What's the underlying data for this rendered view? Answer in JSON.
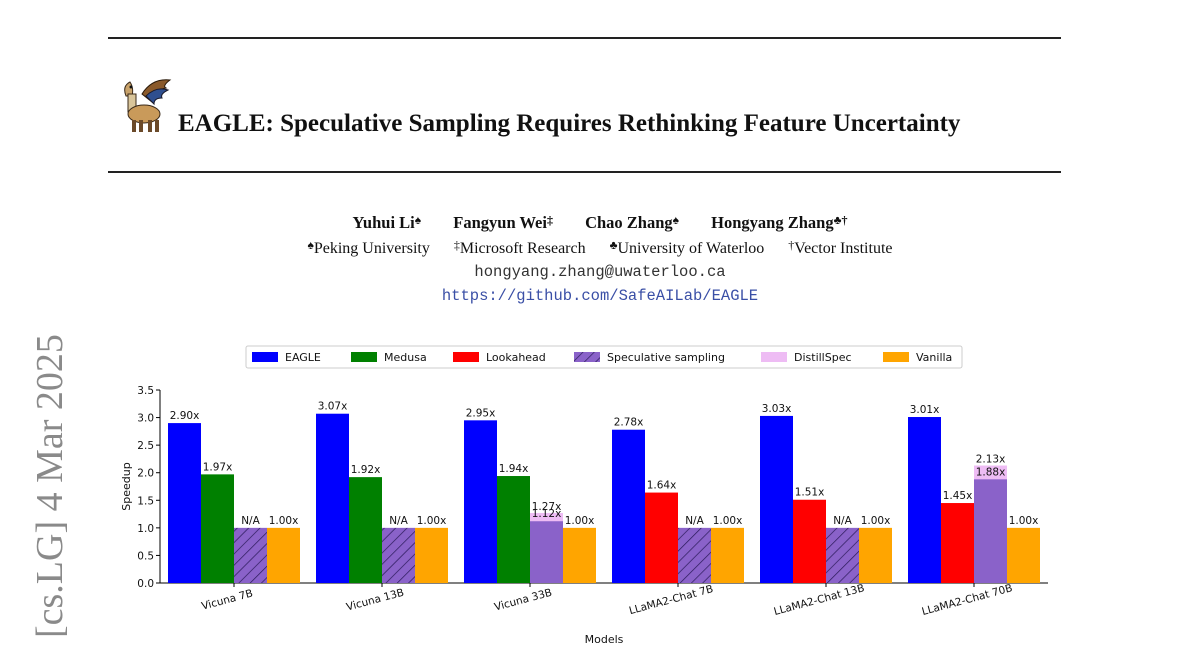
{
  "paper": {
    "title": "EAGLE: Speculative Sampling Requires Rethinking Feature Uncertainty",
    "authors": [
      {
        "name": "Yuhui Li",
        "mark": "♠"
      },
      {
        "name": "Fangyun Wei",
        "mark": "‡"
      },
      {
        "name": "Chao Zhang",
        "mark": "♠"
      },
      {
        "name": "Hongyang Zhang",
        "mark": "♣†"
      }
    ],
    "affiliations": [
      {
        "mark": "♠",
        "name": "Peking University"
      },
      {
        "mark": "‡",
        "name": "Microsoft Research"
      },
      {
        "mark": "♣",
        "name": "University of Waterloo"
      },
      {
        "mark": "†",
        "name": "Vector Institute"
      }
    ],
    "email": "hongyang.zhang@uwaterloo.ca",
    "url": "https://github.com/SafeAILab/EAGLE",
    "arxiv_stamp": "[cs.LG]  4 Mar 2025"
  },
  "chart_data": {
    "type": "bar",
    "xlabel": "Models",
    "ylabel": "Speedup",
    "ylim": [
      0,
      3.5
    ],
    "yticks": [
      "0.0",
      "0.5",
      "1.0",
      "1.5",
      "2.0",
      "2.5",
      "3.0",
      "3.5"
    ],
    "legend_position": "top-center",
    "categories": [
      "Vicuna 7B",
      "Vicuna 13B",
      "Vicuna 33B",
      "LLaMA2-Chat 7B",
      "LLaMA2-Chat 13B",
      "LLaMA2-Chat 70B"
    ],
    "series": [
      {
        "name": "EAGLE",
        "color": "#0000ff",
        "values": [
          2.9,
          3.07,
          2.95,
          2.78,
          3.03,
          3.01
        ],
        "labels": [
          "2.90x",
          "3.07x",
          "2.95x",
          "2.78x",
          "3.03x",
          "3.01x"
        ]
      },
      {
        "name": "Medusa",
        "color": "#008000",
        "values": [
          1.97,
          1.92,
          1.94,
          null,
          null,
          null
        ],
        "labels": [
          "1.97x",
          "1.92x",
          "1.94x",
          null,
          null,
          null
        ]
      },
      {
        "name": "Lookahead",
        "color": "#ff0000",
        "values": [
          null,
          null,
          null,
          1.64,
          1.51,
          1.45
        ],
        "labels": [
          null,
          null,
          null,
          "1.64x",
          "1.51x",
          "1.45x"
        ]
      },
      {
        "name": "Speculative sampling",
        "color": "#8a62c9",
        "values": [
          1.0,
          1.0,
          1.12,
          1.0,
          1.0,
          1.88
        ],
        "labels": [
          "N/A",
          "N/A",
          "1.12x",
          "N/A",
          "N/A",
          "1.88x"
        ],
        "hatched": [
          true,
          true,
          false,
          true,
          true,
          false
        ]
      },
      {
        "name": "DistillSpec",
        "color": "#eebcf4",
        "values": [
          null,
          null,
          1.27,
          null,
          null,
          2.13
        ],
        "labels": [
          null,
          null,
          "1.27x",
          null,
          null,
          "2.13x"
        ]
      },
      {
        "name": "Vanilla",
        "color": "#ffa500",
        "values": [
          1.0,
          1.0,
          1.0,
          1.0,
          1.0,
          1.0
        ],
        "labels": [
          "1.00x",
          "1.00x",
          "1.00x",
          "1.00x",
          "1.00x",
          "1.00x"
        ]
      }
    ]
  }
}
